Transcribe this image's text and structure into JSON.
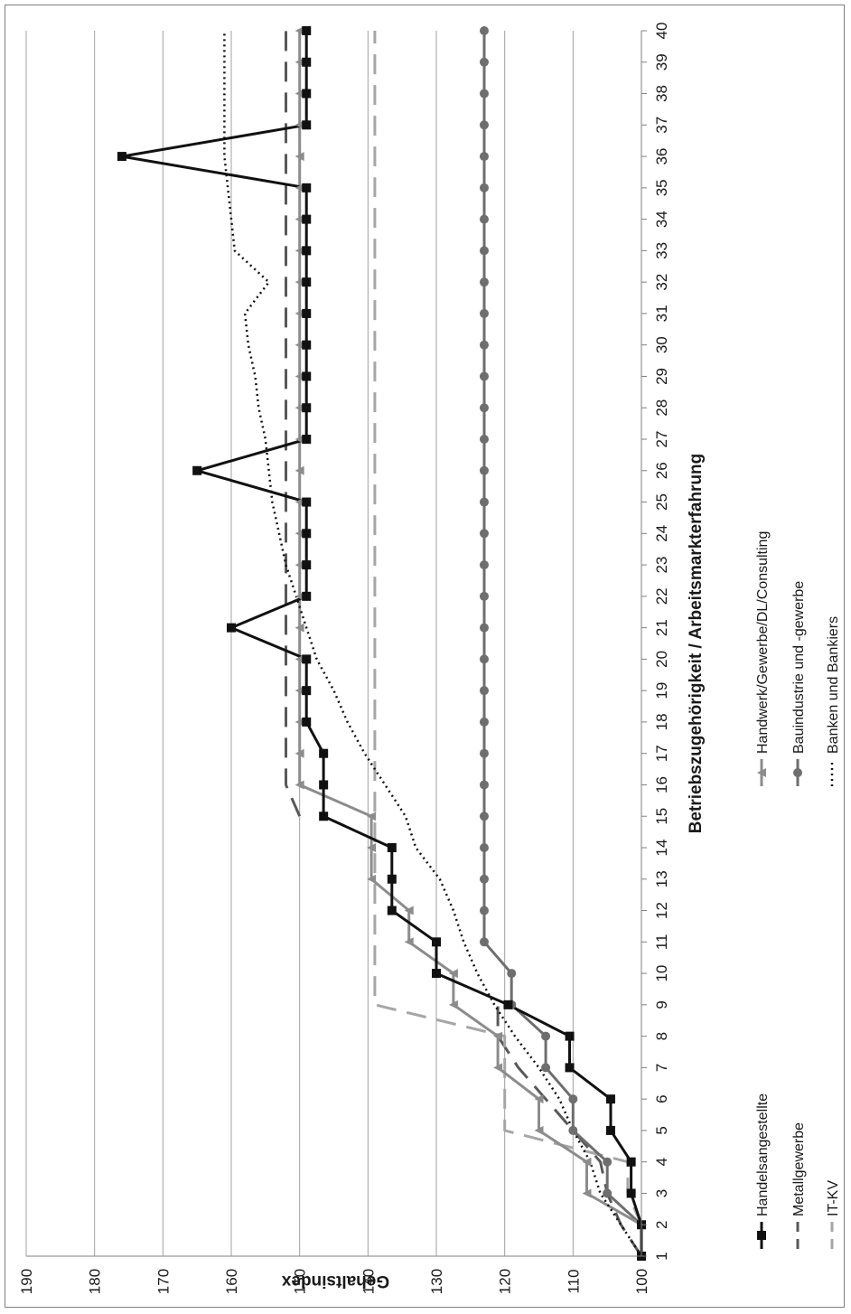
{
  "chart_data": {
    "type": "line",
    "title": "",
    "xlabel": "Betriebszugehörigkeit / Arbeitsmarkterfahrung",
    "ylabel": "Gehaltsindex",
    "orientation": "rotated-90-clockwise",
    "categories": [
      "1",
      "2",
      "3",
      "4",
      "5",
      "6",
      "7",
      "8",
      "9",
      "10",
      "11",
      "12",
      "13",
      "14",
      "15",
      "16",
      "17",
      "18",
      "19",
      "20",
      "21",
      "22",
      "23",
      "24",
      "25",
      "26",
      "27",
      "28",
      "29",
      "30",
      "31",
      "32",
      "33",
      "34",
      "35",
      "36",
      "37",
      "38",
      "39",
      "40"
    ],
    "y_ticks": [
      100,
      110,
      120,
      130,
      140,
      150,
      160,
      170,
      180,
      190
    ],
    "ylim": [
      100,
      190
    ],
    "grid": true,
    "legend_position": "bottom",
    "series": [
      {
        "name": "Handelsangestellte",
        "color": "#111111",
        "dash": "solid",
        "marker": "square",
        "values": [
          100,
          100,
          101.5,
          101.5,
          104.5,
          104.5,
          110.5,
          110.5,
          119.5,
          130,
          130,
          136.5,
          136.5,
          136.5,
          146.5,
          146.5,
          146.5,
          149,
          149,
          149,
          160,
          149,
          149,
          149,
          149,
          165,
          149,
          149,
          149,
          149,
          149,
          149,
          149,
          149,
          149,
          176,
          149,
          149,
          149,
          149
        ]
      },
      {
        "name": "Metallgewerbe",
        "color": "#595959",
        "dash": "long-dash",
        "marker": "none",
        "values": [
          100,
          103,
          105,
          106,
          110,
          114,
          118,
          121,
          121,
          null,
          null,
          null,
          null,
          null,
          150,
          152,
          152,
          152,
          152,
          152,
          152,
          152,
          152,
          152,
          152,
          152,
          152,
          152,
          152,
          152,
          152,
          152,
          152,
          152,
          152,
          152,
          152,
          152,
          152,
          152
        ]
      },
      {
        "name": "IT-KV",
        "color": "#a6a6a6",
        "dash": "long-dash",
        "marker": "none",
        "values": [
          100,
          100,
          102,
          102,
          120,
          120,
          120,
          120,
          139,
          139,
          139,
          139,
          139,
          139,
          139,
          139,
          139,
          139,
          139,
          139,
          139,
          139,
          139,
          139,
          139,
          139,
          139,
          139,
          139,
          139,
          139,
          139,
          139,
          139,
          139,
          139,
          139,
          139,
          139,
          139
        ]
      },
      {
        "name": "Handwerk/Gewerbe/DL/Consulting",
        "color": "#8c8c8c",
        "dash": "solid",
        "marker": "triangle",
        "values": [
          100,
          100,
          108,
          108,
          115,
          115,
          121,
          121,
          127.5,
          127.5,
          134,
          134,
          139.5,
          139.5,
          139.5,
          150,
          150,
          150,
          150,
          150,
          150,
          150,
          150,
          150,
          150,
          150,
          150,
          150,
          150,
          150,
          150,
          150,
          150,
          150,
          150,
          150,
          150,
          150,
          150,
          150
        ]
      },
      {
        "name": "Bauindustrie und -gewerbe",
        "color": "#6e6e6e",
        "dash": "solid",
        "marker": "circle",
        "values": [
          100,
          100,
          105,
          105,
          110,
          110,
          114,
          114,
          119,
          119,
          123,
          123,
          123,
          123,
          123,
          123,
          123,
          123,
          123,
          123,
          123,
          123,
          123,
          123,
          123,
          123,
          123,
          123,
          123,
          123,
          123,
          123,
          123,
          123,
          123,
          123,
          123,
          123,
          123,
          123
        ]
      },
      {
        "name": "Banken und Bankiers",
        "color": "#111111",
        "dash": "dotted",
        "marker": "none",
        "values": [
          100,
          103,
          106,
          107.5,
          110,
          112,
          115,
          118.5,
          121.5,
          124,
          126,
          127.5,
          129.5,
          133,
          134.5,
          137.5,
          140.5,
          143,
          145,
          147.5,
          149,
          150.5,
          152,
          153,
          154,
          154.5,
          155,
          156,
          156.5,
          157.5,
          158,
          154.5,
          159.5,
          160,
          160.5,
          161,
          161,
          161,
          161,
          161
        ]
      }
    ]
  }
}
